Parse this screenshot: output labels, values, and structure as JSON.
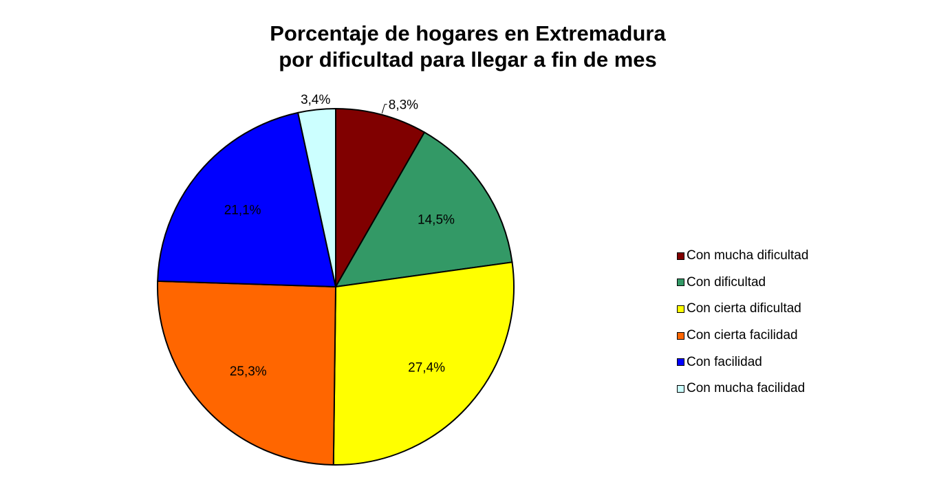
{
  "chart_data": {
    "type": "pie",
    "title": [
      "Porcentaje de hogares en Extremadura",
      "por dificultad para llegar a fin de mes"
    ],
    "slices": [
      {
        "label": "Con mucha dificultad",
        "value": 8.3,
        "value_label": "8,3%",
        "color": "#800000"
      },
      {
        "label": "Con dificultad",
        "value": 14.5,
        "value_label": "14,5%",
        "color": "#339966"
      },
      {
        "label": "Con cierta dificultad",
        "value": 27.4,
        "value_label": "27,4%",
        "color": "#ffff00"
      },
      {
        "label": "Con cierta facilidad",
        "value": 25.3,
        "value_label": "25,3%",
        "color": "#ff6600"
      },
      {
        "label": "Con facilidad",
        "value": 21.1,
        "value_label": "21,1%",
        "color": "#0000ff"
      },
      {
        "label": "Con mucha facilidad",
        "value": 3.4,
        "value_label": "3,4%",
        "color": "#ccffff"
      }
    ],
    "start_angle": "12 o'clock",
    "direction": "clockwise",
    "legend_position": "right"
  }
}
